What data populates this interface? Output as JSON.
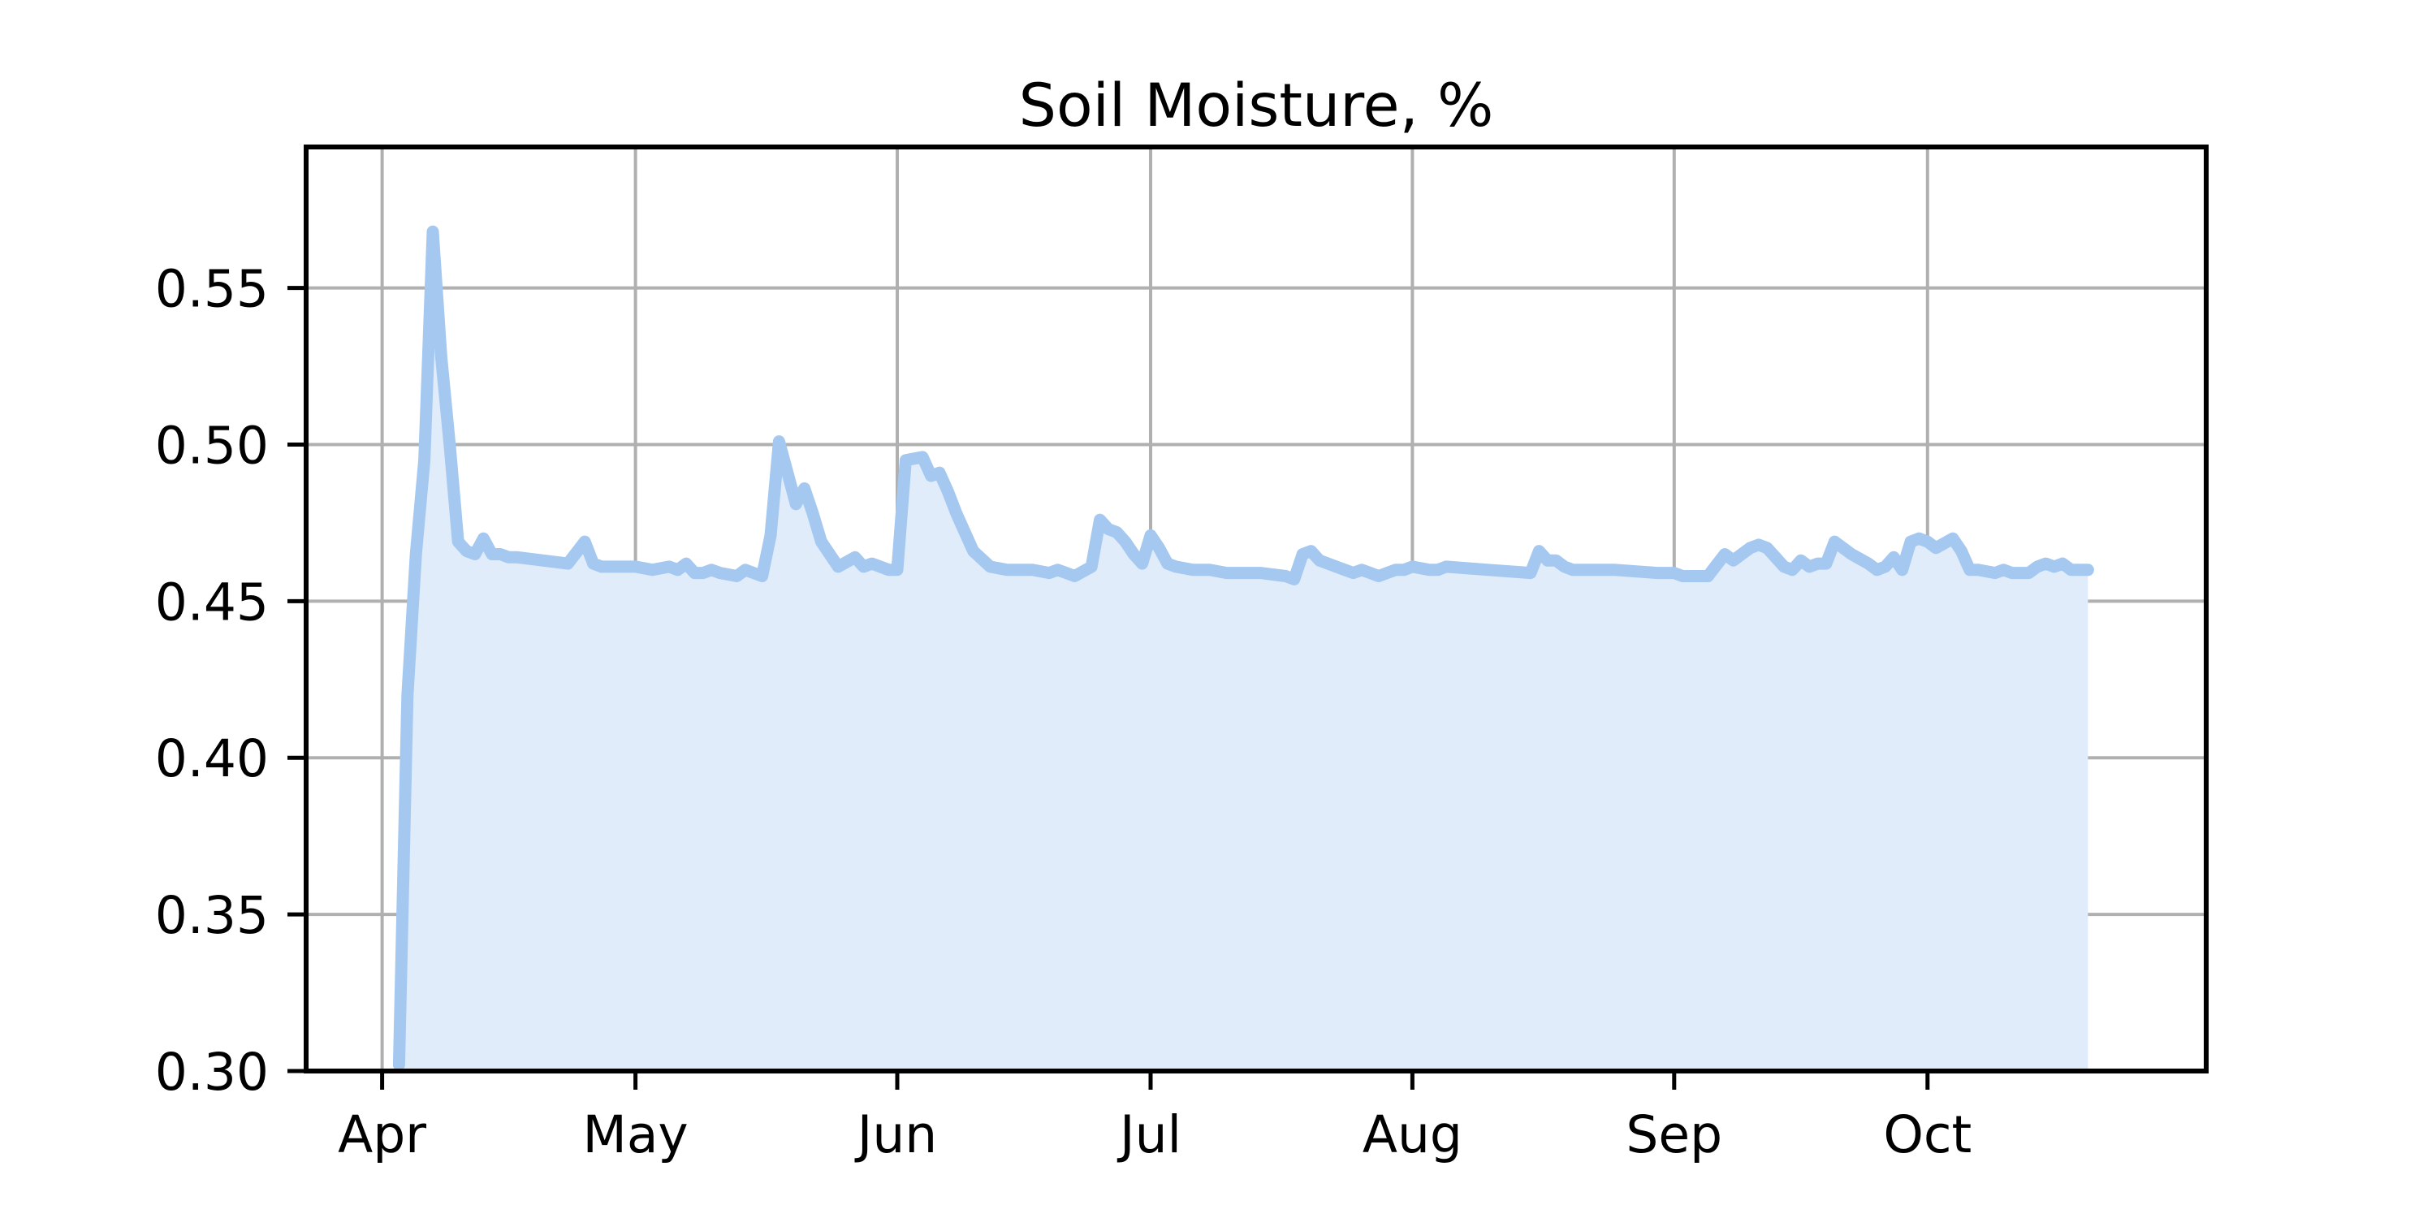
{
  "chart_data": {
    "type": "area",
    "title": "Soil Moisture, %",
    "xlabel": "",
    "ylabel": "",
    "x_axis": {
      "kind": "date",
      "range": [
        "2023-03-23",
        "2023-11-03"
      ],
      "ticks": [
        {
          "date": "2023-04-01",
          "label": "Apr"
        },
        {
          "date": "2023-05-01",
          "label": "May"
        },
        {
          "date": "2023-06-01",
          "label": "Jun"
        },
        {
          "date": "2023-07-01",
          "label": "Jul"
        },
        {
          "date": "2023-08-01",
          "label": "Aug"
        },
        {
          "date": "2023-09-01",
          "label": "Sep"
        },
        {
          "date": "2023-10-01",
          "label": "Oct"
        }
      ]
    },
    "y_axis": {
      "range": [
        0.3,
        0.595
      ],
      "ticks": [
        {
          "value": 0.3,
          "label": "0.30"
        },
        {
          "value": 0.35,
          "label": "0.35"
        },
        {
          "value": 0.4,
          "label": "0.40"
        },
        {
          "value": 0.45,
          "label": "0.45"
        },
        {
          "value": 0.5,
          "label": "0.50"
        },
        {
          "value": 0.55,
          "label": "0.55"
        }
      ]
    },
    "grid": true,
    "legend": "none",
    "colors": {
      "line": "#a5c8f0",
      "fill": "#e0ecfa",
      "grid": "#b0b0b0",
      "axes": "#000000"
    },
    "series": [
      {
        "x": [
          "2023-04-03",
          "2023-04-04",
          "2023-04-05",
          "2023-04-06",
          "2023-04-07",
          "2023-04-08",
          "2023-04-09",
          "2023-04-10",
          "2023-04-11",
          "2023-04-12",
          "2023-04-13",
          "2023-04-14",
          "2023-04-15",
          "2023-04-16",
          "2023-04-17",
          "2023-04-20",
          "2023-04-23",
          "2023-04-25",
          "2023-04-26",
          "2023-04-27",
          "2023-04-28",
          "2023-05-01",
          "2023-05-03",
          "2023-05-05",
          "2023-05-06",
          "2023-05-07",
          "2023-05-08",
          "2023-05-09",
          "2023-05-10",
          "2023-05-11",
          "2023-05-13",
          "2023-05-14",
          "2023-05-16",
          "2023-05-17",
          "2023-05-18",
          "2023-05-19",
          "2023-05-20",
          "2023-05-21",
          "2023-05-22",
          "2023-05-23",
          "2023-05-24",
          "2023-05-25",
          "2023-05-27",
          "2023-05-28",
          "2023-05-29",
          "2023-05-30",
          "2023-05-31",
          "2023-06-01",
          "2023-06-02",
          "2023-06-04",
          "2023-06-05",
          "2023-06-06",
          "2023-06-07",
          "2023-06-08",
          "2023-06-09",
          "2023-06-10",
          "2023-06-12",
          "2023-06-14",
          "2023-06-15",
          "2023-06-17",
          "2023-06-19",
          "2023-06-20",
          "2023-06-21",
          "2023-06-22",
          "2023-06-24",
          "2023-06-25",
          "2023-06-26",
          "2023-06-27",
          "2023-06-28",
          "2023-06-29",
          "2023-06-30",
          "2023-07-01",
          "2023-07-02",
          "2023-07-03",
          "2023-07-04",
          "2023-07-06",
          "2023-07-07",
          "2023-07-08",
          "2023-07-10",
          "2023-07-14",
          "2023-07-17",
          "2023-07-18",
          "2023-07-19",
          "2023-07-20",
          "2023-07-21",
          "2023-07-24",
          "2023-07-25",
          "2023-07-26",
          "2023-07-27",
          "2023-07-28",
          "2023-07-29",
          "2023-07-30",
          "2023-07-31",
          "2023-08-01",
          "2023-08-03",
          "2023-08-04",
          "2023-08-05",
          "2023-08-10",
          "2023-08-15",
          "2023-08-16",
          "2023-08-17",
          "2023-08-18",
          "2023-08-19",
          "2023-08-20",
          "2023-08-25",
          "2023-08-30",
          "2023-08-31",
          "2023-09-01",
          "2023-09-02",
          "2023-09-03",
          "2023-09-05",
          "2023-09-07",
          "2023-09-08",
          "2023-09-10",
          "2023-09-11",
          "2023-09-12",
          "2023-09-13",
          "2023-09-14",
          "2023-09-15",
          "2023-09-16",
          "2023-09-17",
          "2023-09-18",
          "2023-09-19",
          "2023-09-20",
          "2023-09-22",
          "2023-09-24",
          "2023-09-25",
          "2023-09-26",
          "2023-09-27",
          "2023-09-28",
          "2023-09-29",
          "2023-09-30",
          "2023-10-01",
          "2023-10-02",
          "2023-10-04",
          "2023-10-05",
          "2023-10-06",
          "2023-10-07",
          "2023-10-09",
          "2023-10-10",
          "2023-10-11",
          "2023-10-12",
          "2023-10-13",
          "2023-10-14",
          "2023-10-15",
          "2023-10-16",
          "2023-10-17",
          "2023-10-18",
          "2023-10-19",
          "2023-10-20"
        ],
        "y": [
          0.302,
          0.42,
          0.465,
          0.495,
          0.568,
          0.528,
          0.5,
          0.469,
          0.466,
          0.465,
          0.47,
          0.465,
          0.465,
          0.464,
          0.464,
          0.463,
          0.462,
          0.469,
          0.462,
          0.461,
          0.461,
          0.461,
          0.46,
          0.461,
          0.46,
          0.462,
          0.459,
          0.459,
          0.46,
          0.459,
          0.458,
          0.46,
          0.458,
          0.471,
          0.501,
          0.491,
          0.481,
          0.486,
          0.478,
          0.469,
          0.465,
          0.461,
          0.464,
          0.461,
          0.462,
          0.461,
          0.46,
          0.46,
          0.495,
          0.496,
          0.49,
          0.491,
          0.485,
          0.478,
          0.472,
          0.466,
          0.461,
          0.46,
          0.46,
          0.46,
          0.459,
          0.46,
          0.459,
          0.458,
          0.461,
          0.476,
          0.473,
          0.472,
          0.469,
          0.465,
          0.462,
          0.471,
          0.467,
          0.462,
          0.461,
          0.46,
          0.46,
          0.46,
          0.459,
          0.459,
          0.458,
          0.457,
          0.465,
          0.466,
          0.463,
          0.46,
          0.459,
          0.46,
          0.459,
          0.458,
          0.459,
          0.46,
          0.46,
          0.461,
          0.46,
          0.46,
          0.461,
          0.46,
          0.459,
          0.466,
          0.463,
          0.463,
          0.461,
          0.46,
          0.46,
          0.459,
          0.459,
          0.459,
          0.458,
          0.458,
          0.458,
          0.465,
          0.463,
          0.467,
          0.468,
          0.467,
          0.464,
          0.461,
          0.46,
          0.463,
          0.461,
          0.462,
          0.462,
          0.469,
          0.465,
          0.462,
          0.46,
          0.461,
          0.464,
          0.46,
          0.469,
          0.47,
          0.469,
          0.467,
          0.47,
          0.466,
          0.46,
          0.46,
          0.459,
          0.46,
          0.459,
          0.459,
          0.459,
          0.461,
          0.462,
          0.461,
          0.462,
          0.46,
          0.46,
          0.46
        ]
      }
    ]
  }
}
